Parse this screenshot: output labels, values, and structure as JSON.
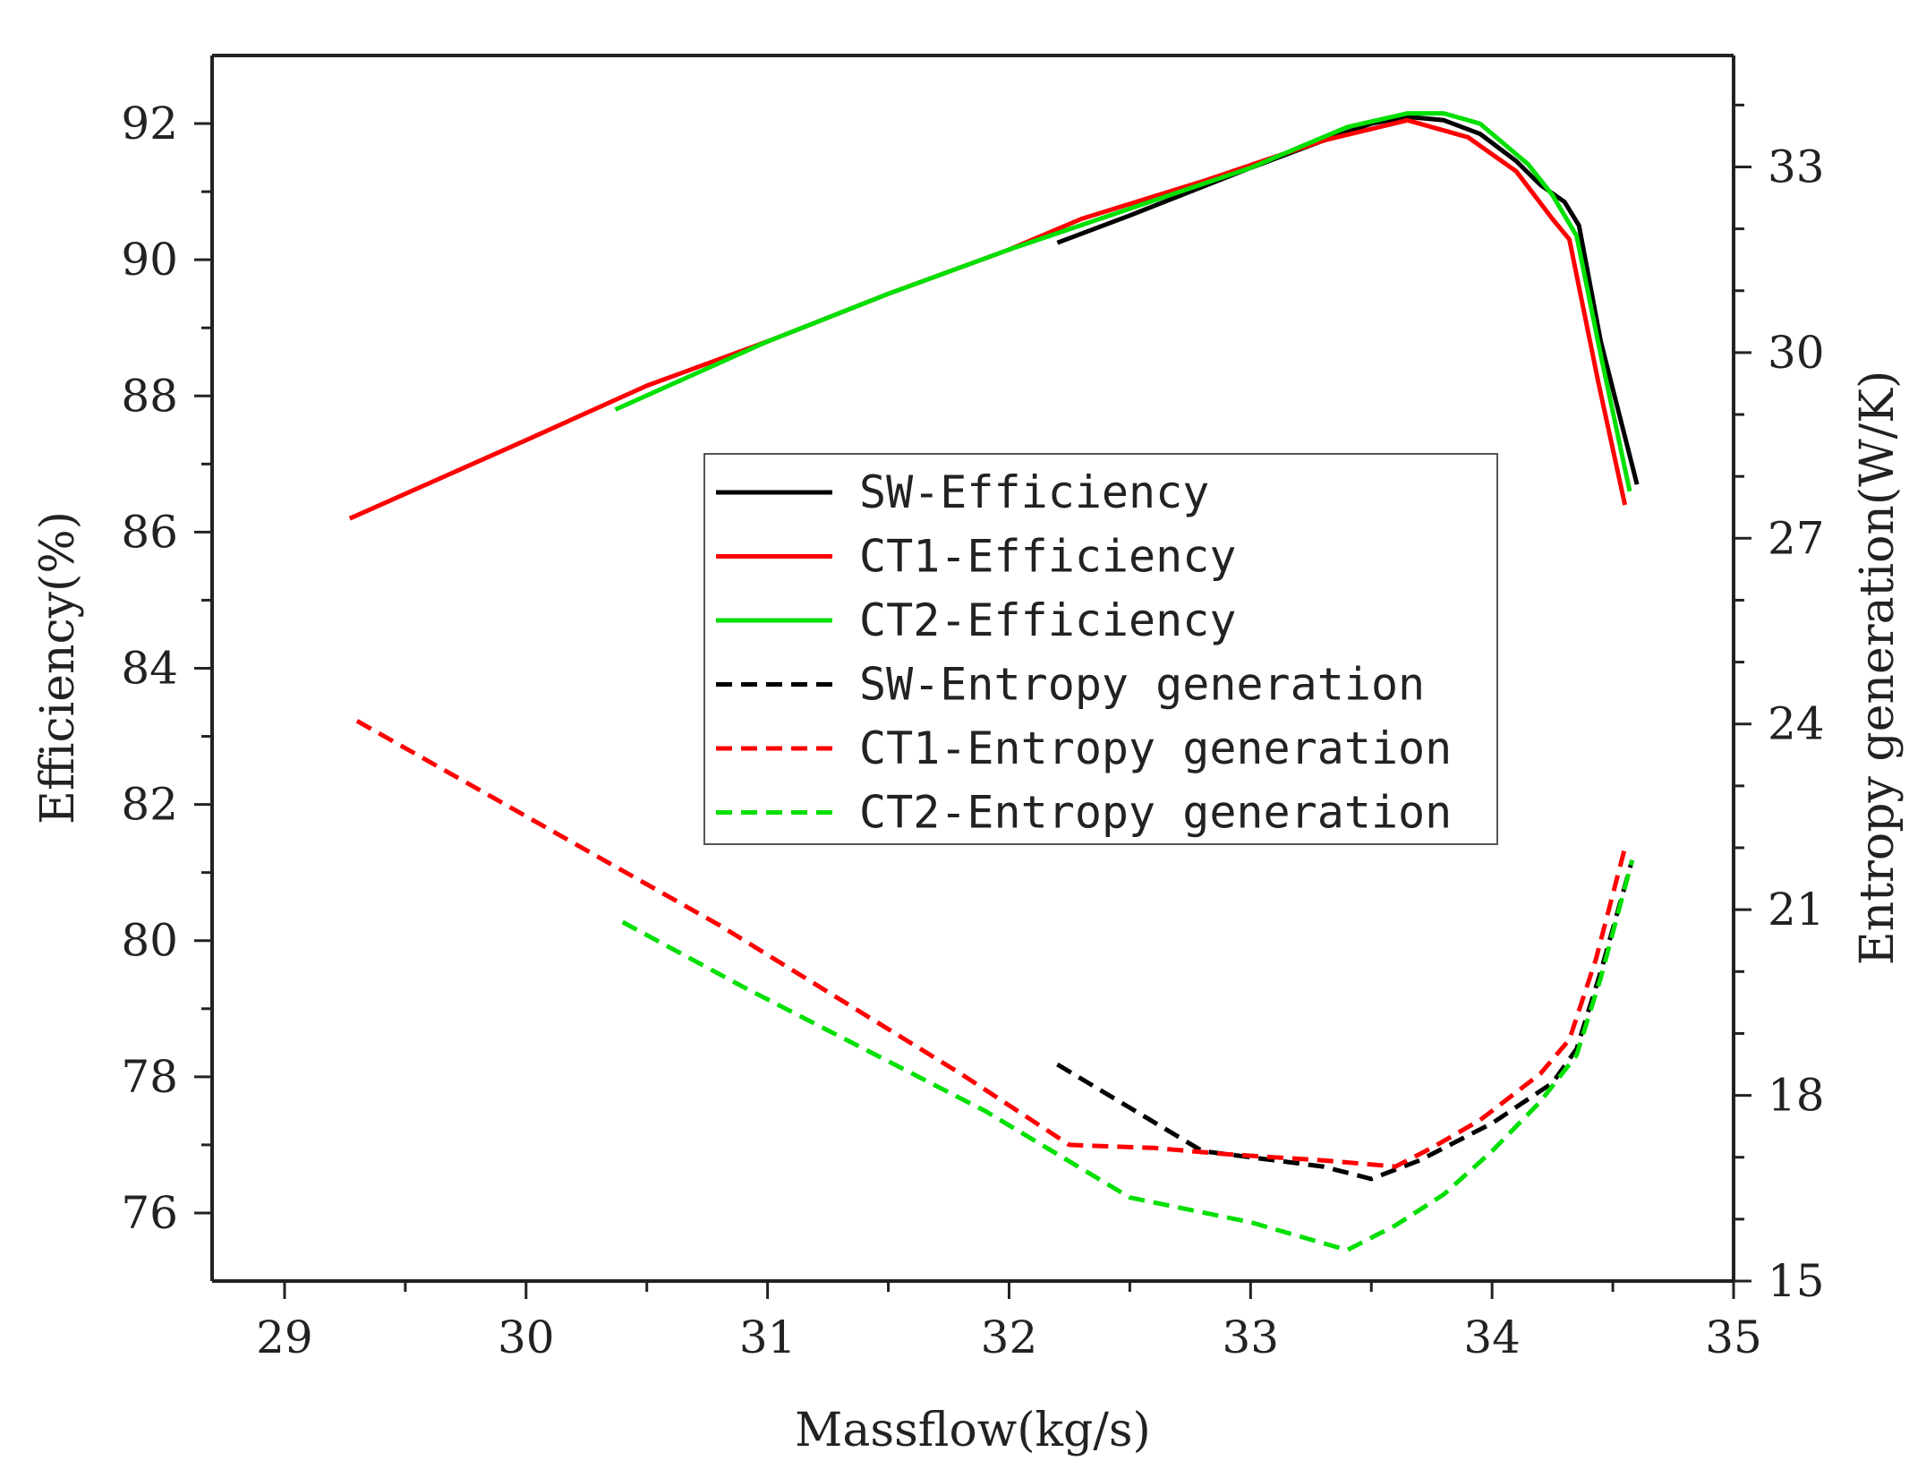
{
  "chart_data": {
    "type": "line",
    "title": "",
    "xlabel": "Massflow(kg/s)",
    "ylabel_left": "Efficiency(%)",
    "ylabel_right": "Entropy generation(W/K)",
    "xlim": [
      28.7,
      35
    ],
    "ylim_left": [
      75,
      93
    ],
    "ylim_right": [
      15,
      34.8
    ],
    "x_ticks": [
      "29",
      "30",
      "31",
      "32",
      "33",
      "34",
      "35"
    ],
    "y_left_ticks": [
      "76",
      "78",
      "80",
      "82",
      "84",
      "86",
      "88",
      "90",
      "92"
    ],
    "y_right_ticks": [
      "15",
      "18",
      "21",
      "24",
      "27",
      "30",
      "33"
    ],
    "legend_position": "center",
    "series": [
      {
        "name": "SW-Efficiency",
        "axis": "left",
        "color": "#000000",
        "dash": false,
        "x": [
          32.2,
          32.5,
          33.0,
          33.3,
          33.5,
          33.65,
          33.8,
          33.95,
          34.1,
          34.2,
          34.3,
          34.36,
          34.45,
          34.6
        ],
        "y": [
          90.25,
          90.65,
          91.35,
          91.75,
          92.0,
          92.1,
          92.05,
          91.85,
          91.45,
          91.1,
          90.85,
          90.5,
          88.8,
          86.7
        ]
      },
      {
        "name": "CT1-Efficiency",
        "axis": "left",
        "color": "#ff0000",
        "dash": false,
        "x": [
          29.27,
          30.0,
          30.5,
          31.0,
          31.5,
          32.0,
          32.3,
          32.8,
          33.3,
          33.65,
          33.9,
          34.1,
          34.25,
          34.32,
          34.44,
          34.55
        ],
        "y": [
          86.2,
          87.35,
          88.15,
          88.8,
          89.5,
          90.15,
          90.6,
          91.15,
          91.75,
          92.05,
          91.8,
          91.3,
          90.6,
          90.3,
          88.2,
          86.4
        ]
      },
      {
        "name": "CT2-Efficiency",
        "axis": "left",
        "color": "#00e000",
        "dash": false,
        "x": [
          30.37,
          31.0,
          31.5,
          32.0,
          32.5,
          33.0,
          33.4,
          33.65,
          33.8,
          33.95,
          34.05,
          34.15,
          34.25,
          34.35,
          34.45,
          34.57
        ],
        "y": [
          87.8,
          88.8,
          89.5,
          90.15,
          90.75,
          91.35,
          91.95,
          92.15,
          92.15,
          92.0,
          91.7,
          91.4,
          90.95,
          90.35,
          88.6,
          86.6
        ]
      },
      {
        "name": "SW-Entropy generation",
        "axis": "right",
        "color": "#000000",
        "dash": true,
        "x": [
          32.2,
          32.5,
          32.8,
          33.0,
          33.3,
          33.5,
          33.7,
          34.0,
          34.25,
          34.35,
          34.45,
          34.58
        ],
        "y": [
          18.5,
          17.8,
          17.1,
          17.0,
          16.85,
          16.65,
          16.95,
          17.55,
          18.2,
          18.75,
          20.0,
          21.8
        ]
      },
      {
        "name": "CT1-Entropy generation",
        "axis": "right",
        "color": "#ff0000",
        "dash": true,
        "x": [
          29.3,
          29.8,
          30.3,
          30.8,
          31.3,
          31.8,
          32.25,
          32.6,
          32.9,
          33.3,
          33.6,
          33.75,
          33.95,
          34.2,
          34.32,
          34.43,
          34.55
        ],
        "y": [
          24.05,
          22.95,
          21.85,
          20.75,
          19.55,
          18.35,
          17.2,
          17.15,
          17.05,
          16.95,
          16.85,
          17.15,
          17.6,
          18.35,
          18.9,
          20.2,
          22.0
        ]
      },
      {
        "name": "CT2-Entropy generation",
        "axis": "right",
        "color": "#00e000",
        "dash": true,
        "x": [
          30.4,
          30.9,
          31.4,
          31.9,
          32.2,
          32.5,
          33.0,
          33.4,
          33.6,
          33.8,
          34.0,
          34.2,
          34.35,
          34.45,
          34.58
        ],
        "y": [
          20.8,
          19.75,
          18.75,
          17.75,
          17.05,
          16.35,
          15.95,
          15.5,
          15.9,
          16.4,
          17.1,
          17.9,
          18.65,
          19.9,
          21.8
        ]
      }
    ]
  }
}
